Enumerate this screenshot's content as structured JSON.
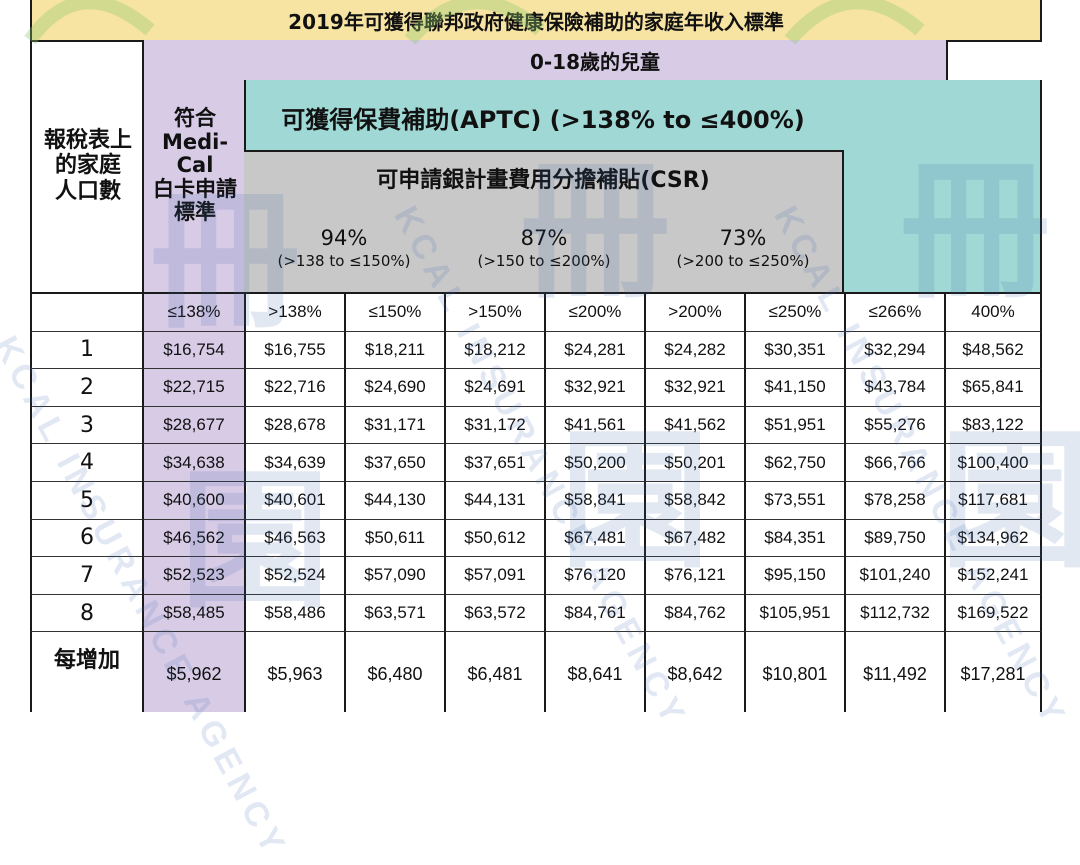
{
  "title": "2019年可獲得聯邦政府健康保險補助的家庭年收入標準",
  "children_header": "0-18歲的兒童",
  "household_header": [
    "報稅表上",
    "的家庭",
    "人口數"
  ],
  "medical_header": [
    "符合",
    "Medi-",
    "Cal",
    "白卡申請",
    "標準"
  ],
  "aptc_header": "可獲得保費補助(APTC) (>138% to ≤400%)",
  "csr_header": "可申請銀計畫費用分擔補貼(CSR)",
  "csr_bands": [
    {
      "pct": "94%",
      "range": "(>138 to ≤150%)"
    },
    {
      "pct": "87%",
      "range": "(>150 to ≤200%)"
    },
    {
      "pct": "73%",
      "range": "(>200 to ≤250%)"
    }
  ],
  "column_headers": [
    "≤138%",
    ">138%",
    "≤150%",
    ">150%",
    "≤200%",
    ">200%",
    "≤250%",
    "≤266%",
    "400%"
  ],
  "rows": [
    {
      "label": "1",
      "values": [
        "$16,754",
        "$16,755",
        "$18,211",
        "$18,212",
        "$24,281",
        "$24,282",
        "$30,351",
        "$32,294",
        "$48,562"
      ]
    },
    {
      "label": "2",
      "values": [
        "$22,715",
        "$22,716",
        "$24,690",
        "$24,691",
        "$32,921",
        "$32,921",
        "$41,150",
        "$43,784",
        "$65,841"
      ]
    },
    {
      "label": "3",
      "values": [
        "$28,677",
        "$28,678",
        "$31,171",
        "$31,172",
        "$41,561",
        "$41,562",
        "$51,951",
        "$55,276",
        "$83,122"
      ]
    },
    {
      "label": "4",
      "values": [
        "$34,638",
        "$34,639",
        "$37,650",
        "$37,651",
        "$50,200",
        "$50,201",
        "$62,750",
        "$66,766",
        "$100,400"
      ]
    },
    {
      "label": "5",
      "values": [
        "$40,600",
        "$40,601",
        "$44,130",
        "$44,131",
        "$58,841",
        "$58,842",
        "$73,551",
        "$78,258",
        "$117,681"
      ]
    },
    {
      "label": "6",
      "values": [
        "$46,562",
        "$46,563",
        "$50,611",
        "$50,612",
        "$67,481",
        "$67,482",
        "$84,351",
        "$89,750",
        "$134,962"
      ]
    },
    {
      "label": "7",
      "values": [
        "$52,523",
        "$52,524",
        "$57,090",
        "$57,091",
        "$76,120",
        "$76,121",
        "$95,150",
        "$101,240",
        "$152,241"
      ]
    },
    {
      "label": "8",
      "values": [
        "$58,485",
        "$58,486",
        "$63,571",
        "$63,572",
        "$84,761",
        "$84,762",
        "$105,951",
        "$112,732",
        "$169,522"
      ]
    }
  ],
  "last_row": {
    "label": "每增加",
    "values": [
      "$5,962",
      "$5,963",
      "$6,480",
      "$6,481",
      "$8,641",
      "$8,642",
      "$10,801",
      "$11,492",
      "$17,281"
    ]
  },
  "watermark": {
    "logo_text": "KCAL INSURANCE AGENCY",
    "glyph": "冊",
    "glyph2": "園"
  },
  "colors": {
    "title_bg": "#f7e3a2",
    "purple": "#d7cbe6",
    "teal": "#9fd8d4",
    "gray": "#c8c8c8"
  }
}
